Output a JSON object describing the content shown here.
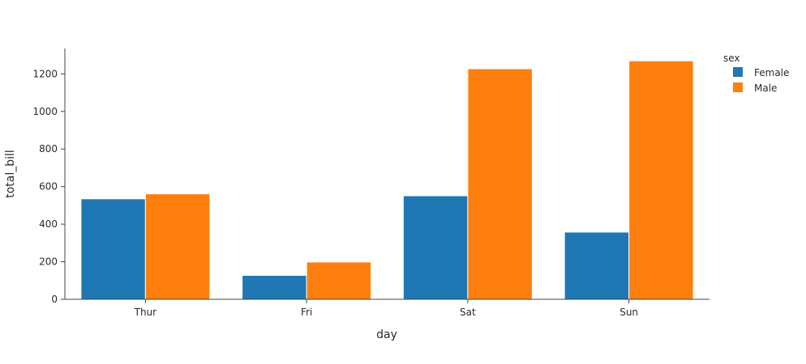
{
  "chart_data": {
    "type": "bar",
    "barmode": "group",
    "categories": [
      "Thur",
      "Fri",
      "Sat",
      "Sun"
    ],
    "series": [
      {
        "name": "Female",
        "color": "#1f77b4",
        "values": [
          534.89,
          127.31,
          551.05,
          357.7
        ]
      },
      {
        "name": "Male",
        "color": "#ff7f0e",
        "values": [
          561.44,
          198.57,
          1227.35,
          1269.46
        ]
      }
    ],
    "xlabel": "day",
    "ylabel": "total_bill",
    "ylim": [
      0,
      1335
    ],
    "yticks": [
      0,
      200,
      400,
      600,
      800,
      1000,
      1200
    ],
    "grid": false,
    "legend": {
      "title": "sex",
      "placement": "top-right"
    }
  }
}
